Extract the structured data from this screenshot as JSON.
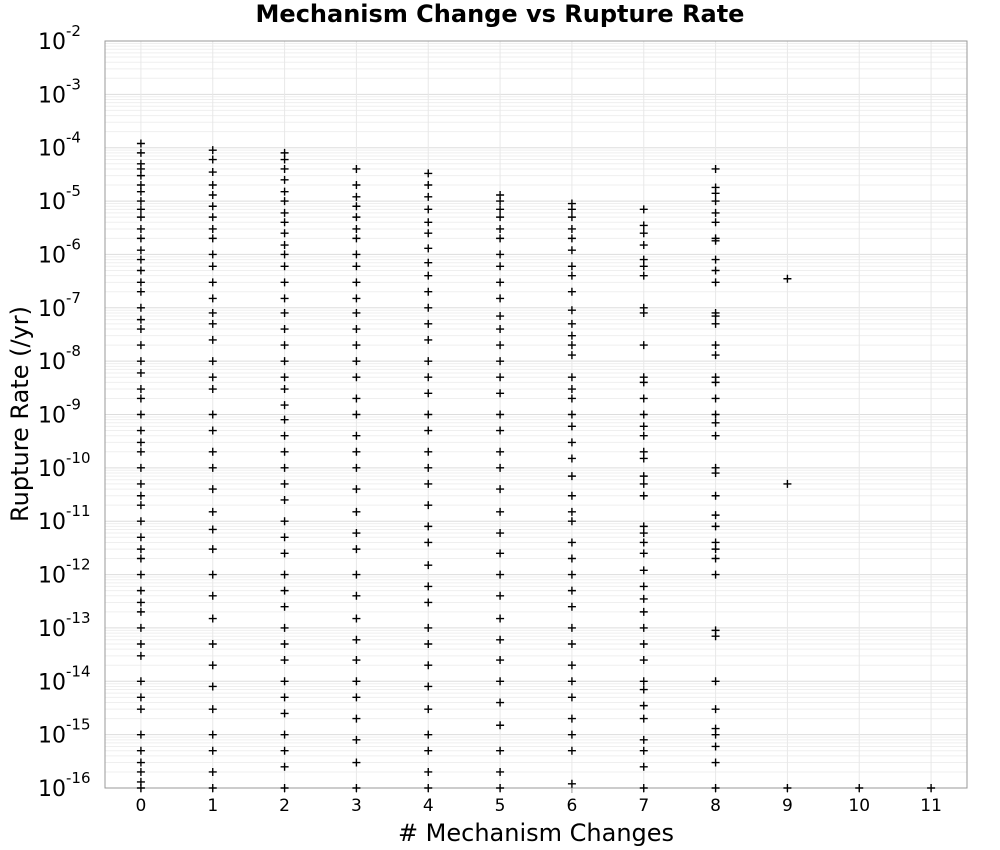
{
  "chart_data": {
    "type": "scatter",
    "title": "Mechanism Change vs Rupture Rate",
    "xlabel": "# Mechanism Changes",
    "ylabel": "Rupture Rate (/yr)",
    "xlim": [
      -0.5,
      11.5
    ],
    "ylim": [
      1e-16,
      0.01
    ],
    "y_scale": "log",
    "grid": true,
    "marker": "plus",
    "marker_color": "#000000",
    "x_ticks": [
      "0",
      "1",
      "2",
      "3",
      "4",
      "5",
      "6",
      "7",
      "8",
      "9",
      "10",
      "11"
    ],
    "y_ticks": [
      {
        "base": "10",
        "exp": "-2"
      },
      {
        "base": "10",
        "exp": "-3"
      },
      {
        "base": "10",
        "exp": "-4"
      },
      {
        "base": "10",
        "exp": "-5"
      },
      {
        "base": "10",
        "exp": "-6"
      },
      {
        "base": "10",
        "exp": "-7"
      },
      {
        "base": "10",
        "exp": "-8"
      },
      {
        "base": "10",
        "exp": "-9"
      },
      {
        "base": "10",
        "exp": "-10"
      },
      {
        "base": "10",
        "exp": "-11"
      },
      {
        "base": "10",
        "exp": "-12"
      },
      {
        "base": "10",
        "exp": "-13"
      },
      {
        "base": "10",
        "exp": "-14"
      },
      {
        "base": "10",
        "exp": "-15"
      },
      {
        "base": "10",
        "exp": "-16"
      }
    ],
    "series": [
      {
        "values_by_x": {
          "0": [
            "1.2e-4",
            "8e-5",
            "5e-5",
            "4e-5",
            "3e-5",
            "2e-5",
            "1.5e-5",
            "1e-5",
            "7e-6",
            "5e-6",
            "3e-6",
            "2e-6",
            "1.2e-6",
            "8e-7",
            "5e-7",
            "3e-7",
            "2e-7",
            "1e-7",
            "6e-8",
            "4e-8",
            "2e-8",
            "1e-8",
            "6e-9",
            "3e-9",
            "2e-9",
            "1e-9",
            "5e-10",
            "3e-10",
            "2e-10",
            "1e-10",
            "5e-11",
            "3e-11",
            "2e-11",
            "1e-11",
            "5e-12",
            "3e-12",
            "2e-12",
            "1e-12",
            "5e-13",
            "3e-13",
            "2e-13",
            "1e-13",
            "5e-14",
            "3e-14",
            "1e-14",
            "5e-15",
            "3e-15",
            "1e-15",
            "5e-16",
            "3e-16",
            "2e-16",
            "1.3e-16",
            "1e-16"
          ],
          "1": [
            "9e-5",
            "6e-5",
            "3.5e-5",
            "2e-5",
            "1.3e-5",
            "8e-6",
            "5e-6",
            "3e-6",
            "2e-6",
            "1e-6",
            "6e-7",
            "3e-7",
            "1.5e-7",
            "8e-8",
            "5e-8",
            "2.5e-8",
            "1e-8",
            "5e-9",
            "3e-9",
            "1e-9",
            "5e-10",
            "2e-10",
            "1e-10",
            "4e-11",
            "1.5e-11",
            "7e-12",
            "3e-12",
            "1e-12",
            "4e-13",
            "1.5e-13",
            "5e-14",
            "2e-14",
            "8e-15",
            "3e-15",
            "1e-15",
            "5e-16",
            "2e-16",
            "1e-16"
          ],
          "2": [
            "8e-5",
            "6e-5",
            "4e-5",
            "2.5e-5",
            "1.5e-5",
            "1e-5",
            "6e-6",
            "4e-6",
            "2.5e-6",
            "1.5e-6",
            "1e-6",
            "6e-7",
            "3e-7",
            "1.5e-7",
            "8e-8",
            "4e-8",
            "2e-8",
            "1e-8",
            "5e-9",
            "3e-9",
            "1.5e-9",
            "8e-10",
            "4e-10",
            "2e-10",
            "1e-10",
            "5e-11",
            "2.5e-11",
            "1e-11",
            "5e-12",
            "2.5e-12",
            "1e-12",
            "5e-13",
            "2.5e-13",
            "1e-13",
            "5e-14",
            "2.5e-14",
            "1e-14",
            "5e-15",
            "2.5e-15",
            "1e-15",
            "5e-16",
            "2.5e-16",
            "1e-16"
          ],
          "3": [
            "4e-5",
            "2e-5",
            "1.2e-5",
            "8e-6",
            "5e-6",
            "3e-6",
            "2e-6",
            "1e-6",
            "6e-7",
            "3e-7",
            "1.5e-7",
            "8e-8",
            "4e-8",
            "2e-8",
            "1e-8",
            "5e-9",
            "2e-9",
            "1e-9",
            "4e-10",
            "2e-10",
            "1e-10",
            "4e-11",
            "1.5e-11",
            "6e-12",
            "3e-12",
            "1e-12",
            "4e-13",
            "1.5e-13",
            "6e-14",
            "2.5e-14",
            "1e-14",
            "5e-15",
            "2e-15",
            "8e-16",
            "3e-16",
            "1e-16"
          ],
          "4": [
            "3.3e-5",
            "2e-5",
            "1.2e-5",
            "7e-6",
            "4e-6",
            "2.5e-6",
            "1.3e-6",
            "7e-7",
            "4e-7",
            "2e-7",
            "1e-7",
            "5e-8",
            "2.5e-8",
            "1e-8",
            "5e-9",
            "2.5e-9",
            "1e-9",
            "5e-10",
            "2e-10",
            "1e-10",
            "5e-11",
            "2e-11",
            "8e-12",
            "4e-12",
            "1.5e-12",
            "6e-13",
            "3e-13",
            "1e-13",
            "5e-14",
            "2e-14",
            "8e-15",
            "3e-15",
            "1e-15",
            "5e-16",
            "2e-16",
            "1e-16"
          ],
          "5": [
            "1.3e-5",
            "1e-5",
            "7e-6",
            "5e-6",
            "3e-6",
            "2e-6",
            "1e-6",
            "6e-7",
            "3e-7",
            "1.5e-7",
            "7e-8",
            "4e-8",
            "2e-8",
            "1e-8",
            "5e-9",
            "2.5e-9",
            "1e-9",
            "5e-10",
            "2e-10",
            "1e-10",
            "4e-11",
            "1.5e-11",
            "6e-12",
            "2.5e-12",
            "1e-12",
            "4e-13",
            "1.5e-13",
            "6e-14",
            "2.5e-14",
            "1e-14",
            "4e-15",
            "1.5e-15",
            "5e-16",
            "2e-16",
            "1e-16"
          ],
          "6": [
            "9e-6",
            "7e-6",
            "5e-6",
            "3e-6",
            "2e-6",
            "1.2e-6",
            "6e-7",
            "4e-7",
            "2e-7",
            "9e-8",
            "5e-8",
            "3e-8",
            "2e-8",
            "1.3e-8",
            "5e-9",
            "3e-9",
            "2e-9",
            "1e-9",
            "6e-10",
            "3e-10",
            "1.5e-10",
            "7e-11",
            "3e-11",
            "1.5e-11",
            "1e-11",
            "4e-12",
            "2e-12",
            "1e-12",
            "5e-13",
            "2.5e-13",
            "1e-13",
            "5e-14",
            "2e-14",
            "1e-14",
            "5e-15",
            "2e-15",
            "1e-15",
            "5e-16",
            "1.2e-16"
          ],
          "7": [
            "7e-6",
            "3.5e-6",
            "2.5e-6",
            "1.5e-6",
            "8e-7",
            "6e-7",
            "4e-7",
            "1e-7",
            "8e-8",
            "2e-8",
            "5e-9",
            "4e-9",
            "2e-9",
            "1e-9",
            "6e-10",
            "4e-10",
            "2e-10",
            "1.5e-10",
            "7e-11",
            "5e-11",
            "3e-11",
            "8e-12",
            "6e-12",
            "4e-12",
            "2.5e-12",
            "1.2e-12",
            "6e-13",
            "3.5e-13",
            "2e-13",
            "1e-13",
            "5e-14",
            "2.5e-14",
            "1e-14",
            "7e-15",
            "3.5e-15",
            "2e-15",
            "8e-16",
            "5e-16",
            "2.5e-16",
            "1e-16"
          ],
          "8": [
            "4e-5",
            "1.8e-5",
            "1.4e-5",
            "1e-5",
            "6e-6",
            "4e-6",
            "2e-6",
            "1.8e-6",
            "8e-7",
            "5e-7",
            "3e-7",
            "8e-8",
            "7e-8",
            "5e-8",
            "2e-8",
            "1.3e-8",
            "5e-9",
            "4e-9",
            "2e-9",
            "1e-9",
            "7e-10",
            "4e-10",
            "1e-10",
            "8e-11",
            "3e-11",
            "1.3e-11",
            "8e-12",
            "4e-12",
            "3e-12",
            "2e-12",
            "1e-12",
            "9e-14",
            "7e-14",
            "1e-14",
            "3e-15",
            "1.3e-15",
            "1e-15",
            "6e-16",
            "3e-16",
            "1e-16"
          ],
          "9": [
            "3.5e-7",
            "5e-11",
            "1e-16"
          ],
          "10": [
            "1e-16"
          ],
          "11": [
            "1e-16"
          ]
        }
      }
    ]
  }
}
